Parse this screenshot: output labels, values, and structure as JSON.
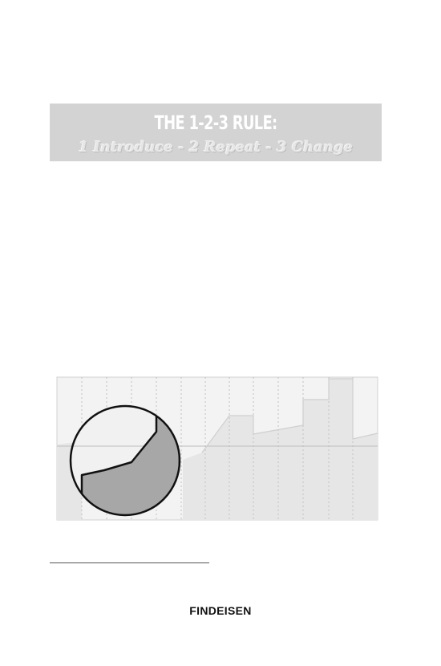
{
  "banner": {
    "title": "THE 1-2-3 RULE:",
    "subtitle": "1 Introduce - 2 Repeat - 3 Change"
  },
  "figure": {
    "icon": "magnified-area-chart",
    "colors": {
      "background": "#f3f3f3",
      "area_fill": "#e6e6e6",
      "grid": "#c6c6c6",
      "magnified_fill": "#a7a7a7",
      "outline": "#111111"
    }
  },
  "footer": {
    "running_head": "FINDEISEN"
  }
}
